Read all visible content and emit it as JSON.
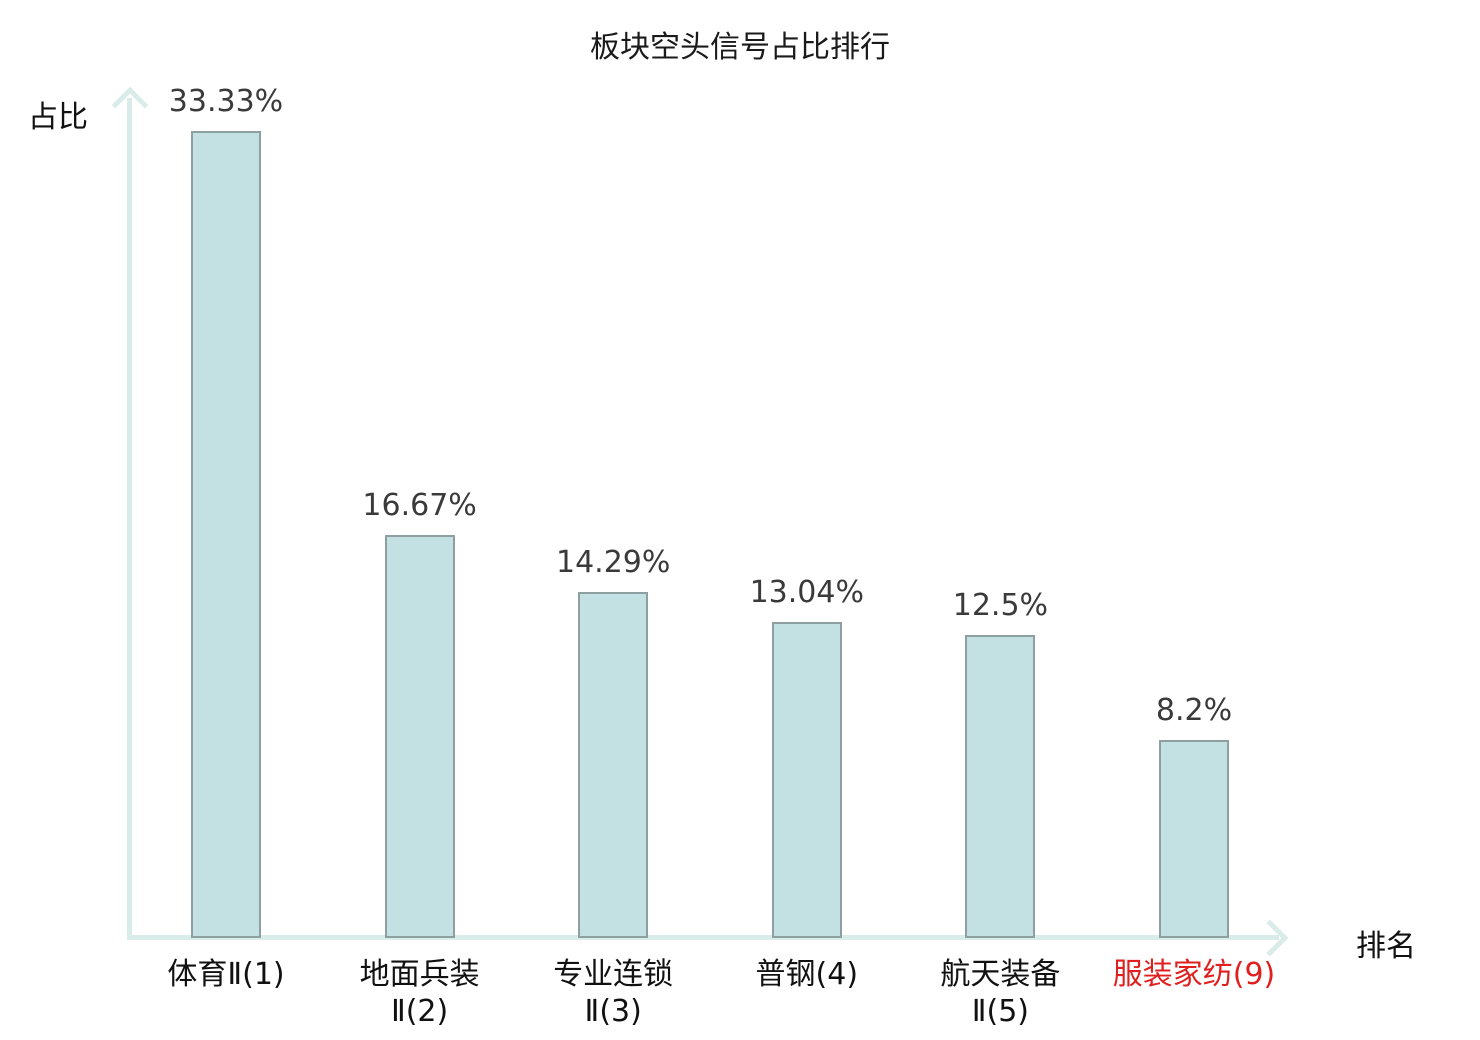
{
  "title": "板块空头信号占比排行",
  "y_axis_label": "占比",
  "x_axis_label": "排名",
  "colors": {
    "bar_fill": "#c3e0e3",
    "bar_border": "#8d9fa0",
    "axis": "#daecea",
    "value_label_text": "#3a3a3a",
    "tick_text": "#111111",
    "highlight_text": "#e01f1f",
    "background": "#ffffff"
  },
  "chart_data": {
    "type": "bar",
    "title": "板块空头信号占比排行",
    "xlabel": "排名",
    "ylabel": "占比",
    "categories": [
      "体育Ⅱ(1)",
      "地面兵装Ⅱ(2)",
      "专业连锁Ⅱ(3)",
      "普钢(4)",
      "航天装备Ⅱ(5)",
      "服装家纺(9)"
    ],
    "values": [
      33.33,
      16.67,
      14.29,
      13.04,
      12.5,
      8.2
    ],
    "ylim": [
      0,
      35
    ],
    "grid": false,
    "legend": null,
    "bars": [
      {
        "category": "体育Ⅱ(1)",
        "label_lines": [
          "体育Ⅱ(1)"
        ],
        "value": 33.33,
        "value_label": "33.33%",
        "highlighted": false
      },
      {
        "category": "地面兵装Ⅱ(2)",
        "label_lines": [
          "地面兵装",
          "Ⅱ(2)"
        ],
        "value": 16.67,
        "value_label": "16.67%",
        "highlighted": false
      },
      {
        "category": "专业连锁Ⅱ(3)",
        "label_lines": [
          "专业连锁",
          "Ⅱ(3)"
        ],
        "value": 14.29,
        "value_label": "14.29%",
        "highlighted": false
      },
      {
        "category": "普钢(4)",
        "label_lines": [
          "普钢(4)"
        ],
        "value": 13.04,
        "value_label": "13.04%",
        "highlighted": false
      },
      {
        "category": "航天装备Ⅱ(5)",
        "label_lines": [
          "航天装备",
          "Ⅱ(5)"
        ],
        "value": 12.5,
        "value_label": "12.5%",
        "highlighted": false
      },
      {
        "category": "服装家纺(9)",
        "label_lines": [
          "服装家纺(9)"
        ],
        "value": 8.2,
        "value_label": "8.2%",
        "highlighted": true
      }
    ]
  }
}
